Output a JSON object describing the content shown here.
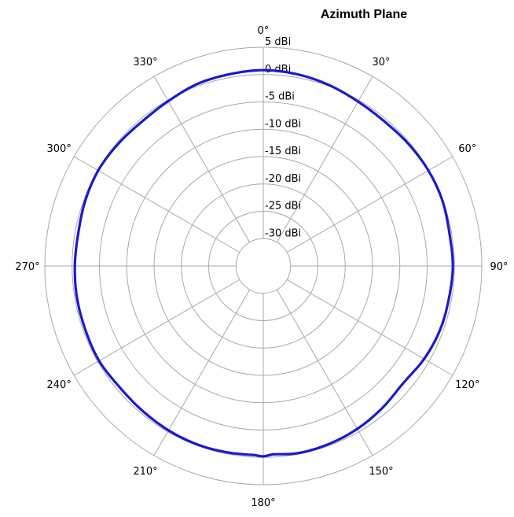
{
  "chart_data": {
    "type": "polar-line",
    "title": "Azimuth Plane",
    "radial_unit": "dBi",
    "rlim": [
      -35,
      5
    ],
    "radial_ticks": [
      5,
      0,
      -5,
      -10,
      -15,
      -20,
      -25,
      -30
    ],
    "radial_tick_labels": [
      "5 dBi",
      "0 dBi",
      "-5 dBi",
      "-10 dBi",
      "-15 dBi",
      "-20 dBi",
      "-25 dBi",
      "-30 dBi"
    ],
    "angle_ticks": [
      0,
      30,
      60,
      90,
      120,
      150,
      180,
      210,
      240,
      270,
      300,
      330
    ],
    "angle_tick_labels": [
      "0°",
      "30°",
      "60°",
      "90°",
      "120°",
      "150°",
      "180°",
      "210°",
      "240°",
      "270°",
      "300°",
      "330°"
    ],
    "angle_direction": "clockwise",
    "zero_location": "top",
    "grid": true,
    "series": [
      {
        "color": "#1a1acc",
        "angles": [
          0,
          10,
          20,
          30,
          40,
          50,
          60,
          70,
          80,
          90,
          100,
          110,
          120,
          130,
          140,
          150,
          160,
          170,
          177,
          180,
          183,
          190,
          200,
          210,
          220,
          230,
          240,
          250,
          260,
          270,
          280,
          290,
          300,
          310,
          320,
          330,
          340,
          350
        ],
        "values": [
          0.8,
          0.6,
          0.2,
          -0.3,
          -0.5,
          -0.3,
          -0.1,
          -0.1,
          -0.4,
          -0.3,
          -0.5,
          -0.6,
          -1.0,
          -1.6,
          -1.1,
          -0.6,
          -0.3,
          -0.2,
          -0.5,
          -0.2,
          -0.4,
          -0.3,
          -0.2,
          -0.3,
          -0.5,
          -0.6,
          -0.3,
          -0.4,
          -0.4,
          -0.5,
          -0.6,
          -0.3,
          -0.1,
          -0.3,
          -0.5,
          -0.2,
          0.4,
          0.6
        ]
      }
    ]
  }
}
